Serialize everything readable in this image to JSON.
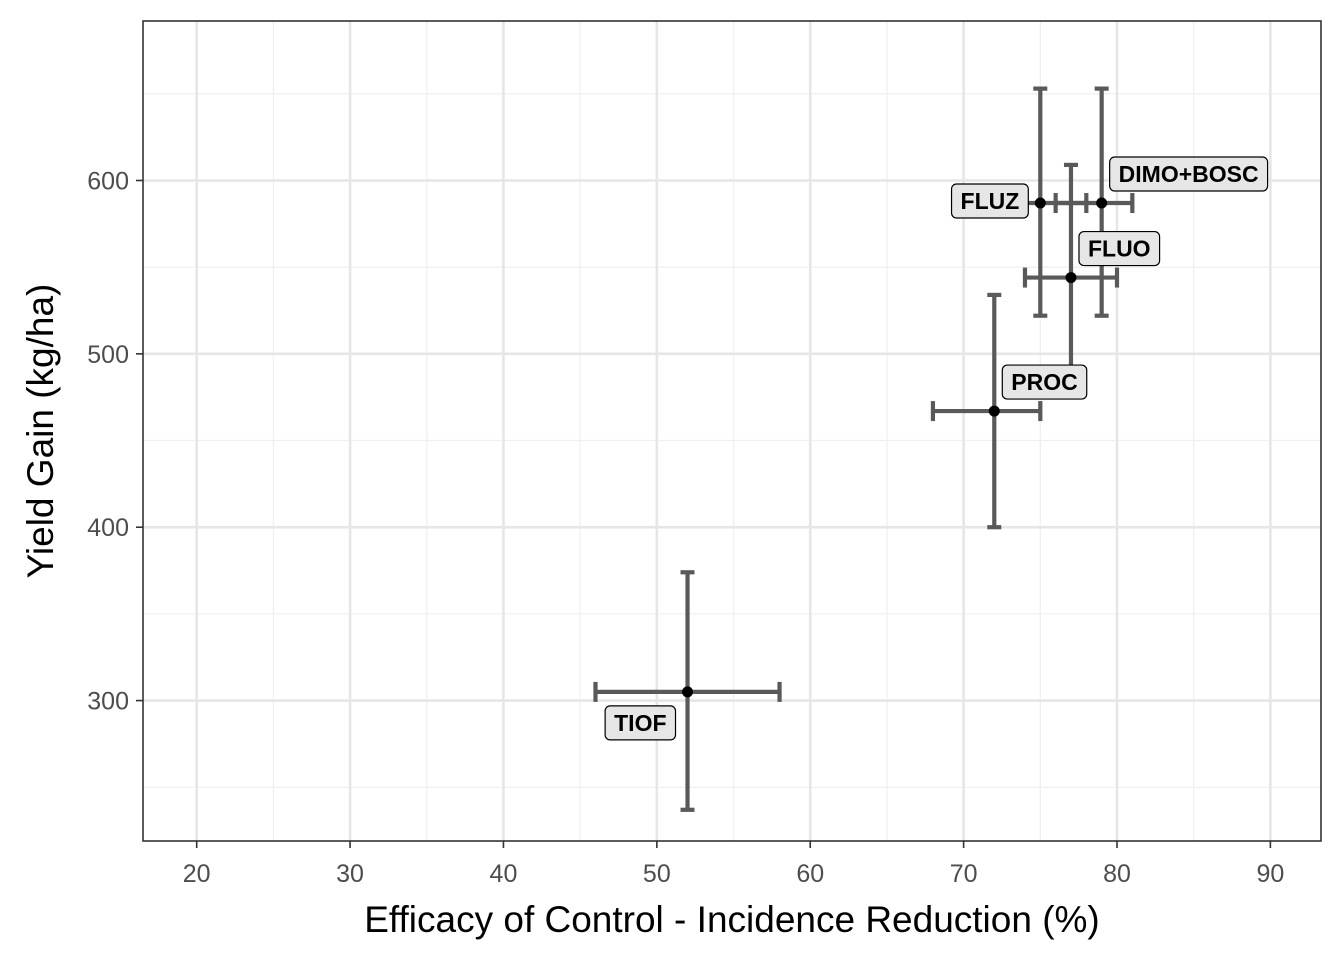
{
  "chart_data": {
    "type": "scatter",
    "xlabel": "Efficacy of Control - Incidence Reduction (%)",
    "ylabel": "Yield Gain (kg/ha)",
    "xlim": [
      16.5,
      93.3
    ],
    "ylim": [
      219,
      692
    ],
    "x_ticks": [
      20,
      30,
      40,
      50,
      60,
      70,
      80,
      90
    ],
    "y_ticks": [
      300,
      400,
      500,
      600
    ],
    "grid": true,
    "legend": "none",
    "colors": {
      "point": "#000000",
      "errorbar": "#595959",
      "label_fill": "#e6e6e6",
      "grid_major": "#e6e6e6",
      "grid_minor": "#f0f0f0",
      "panel_border": "#333333"
    },
    "points": [
      {
        "label": "TIOF",
        "x": 52,
        "y": 305,
        "x_lo": 46,
        "x_hi": 58,
        "y_lo": 237,
        "y_hi": 374,
        "label_pos": "bottom-left"
      },
      {
        "label": "PROC",
        "x": 72,
        "y": 467,
        "x_lo": 68,
        "x_hi": 75,
        "y_lo": 400,
        "y_hi": 534,
        "label_pos": "top-right"
      },
      {
        "label": "FLUO",
        "x": 77,
        "y": 544,
        "x_lo": 74,
        "x_hi": 80,
        "y_lo": 478,
        "y_hi": 609,
        "label_pos": "top-right"
      },
      {
        "label": "FLUZ",
        "x": 75,
        "y": 587,
        "x_lo": 72,
        "x_hi": 78,
        "y_lo": 522,
        "y_hi": 653,
        "label_pos": "left"
      },
      {
        "label": "DIMO+BOSC",
        "x": 79,
        "y": 587,
        "x_lo": 76,
        "x_hi": 81,
        "y_lo": 522,
        "y_hi": 653,
        "label_pos": "top-right"
      }
    ]
  }
}
